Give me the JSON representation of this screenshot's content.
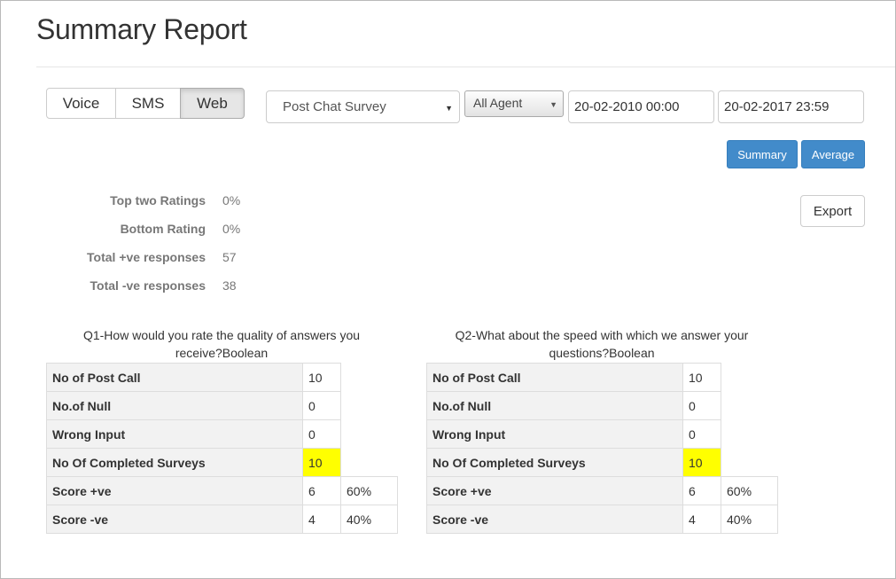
{
  "page": {
    "title": "Summary Report"
  },
  "channels": [
    {
      "label": "Voice",
      "active": false
    },
    {
      "label": "SMS",
      "active": false
    },
    {
      "label": "Web",
      "active": true
    }
  ],
  "filters": {
    "survey_selected": "Post Chat Survey",
    "agent_selected": "All Agent",
    "date_from": "20-02-2010 00:00",
    "date_to": "20-02-2017 23:59"
  },
  "actions": {
    "summary_label": "Summary",
    "average_label": "Average",
    "export_label": "Export"
  },
  "stats": [
    {
      "label": "Top two Ratings",
      "value": "0%"
    },
    {
      "label": "Bottom Rating",
      "value": "0%"
    },
    {
      "label": "Total +ve responses",
      "value": "57"
    },
    {
      "label": "Total -ve responses",
      "value": "38"
    }
  ],
  "questions": [
    {
      "title_line1": "Q1-How would you rate the quality of answers you",
      "title_line2": "receive?Boolean",
      "rows": [
        {
          "label": "No of Post Call",
          "value": "10",
          "percent": ""
        },
        {
          "label": "No.of Null",
          "value": "0",
          "percent": ""
        },
        {
          "label": "Wrong Input",
          "value": "0",
          "percent": ""
        },
        {
          "label": "No Of Completed Surveys",
          "value": "10",
          "percent": ""
        },
        {
          "label": "Score +ve",
          "value": "6",
          "percent": "60%"
        },
        {
          "label": "Score -ve",
          "value": "4",
          "percent": "40%"
        }
      ]
    },
    {
      "title_line1": "Q2-What about the speed with which we answer your",
      "title_line2": "questions?Boolean",
      "rows": [
        {
          "label": "No of Post Call",
          "value": "10",
          "percent": ""
        },
        {
          "label": "No.of Null",
          "value": "0",
          "percent": ""
        },
        {
          "label": "Wrong Input",
          "value": "0",
          "percent": ""
        },
        {
          "label": "No Of Completed Surveys",
          "value": "10",
          "percent": ""
        },
        {
          "label": "Score +ve",
          "value": "6",
          "percent": "60%"
        },
        {
          "label": "Score -ve",
          "value": "4",
          "percent": "40%"
        }
      ]
    }
  ],
  "colors": {
    "primary": "#428bca",
    "highlight": "#ffff00"
  }
}
